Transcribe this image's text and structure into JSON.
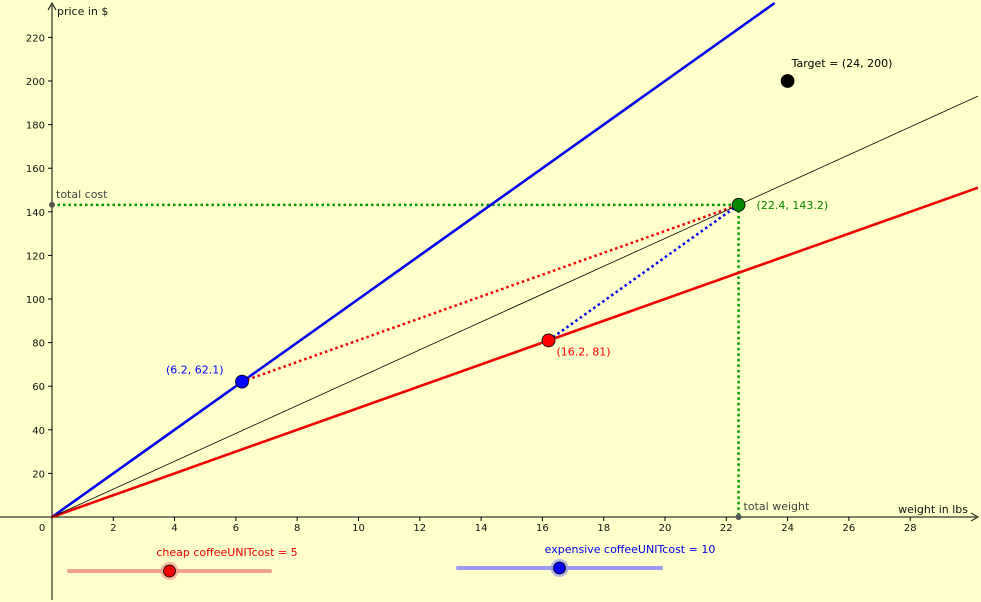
{
  "chart_data": {
    "type": "line",
    "xlabel": "weight in lbs",
    "ylabel": "price in $",
    "xlim": [
      0,
      30.5
    ],
    "ylim": [
      0,
      226
    ],
    "x_ticks": [
      "0",
      "2",
      "4",
      "6",
      "8",
      "10",
      "12",
      "14",
      "16",
      "18",
      "20",
      "22",
      "24",
      "26",
      "28"
    ],
    "y_ticks": [
      "20",
      "40",
      "60",
      "80",
      "100",
      "120",
      "140",
      "160",
      "180",
      "200",
      "220"
    ],
    "grid": false,
    "series": [
      {
        "color": "#0000ee",
        "slope": 10,
        "role": "expensive coffee price line"
      },
      {
        "color": "#ee0000",
        "slope": 5,
        "role": "cheap coffee price line"
      },
      {
        "color": "#000000",
        "slope": 6.39,
        "role": "average price line"
      }
    ],
    "points": [
      {
        "x": 6.2,
        "y": 62.1,
        "label": "(6.2, 62.1)",
        "color": "#0000ff"
      },
      {
        "x": 16.2,
        "y": 81,
        "label": "(16.2, 81)",
        "color": "#ff0000"
      },
      {
        "x": 22.4,
        "y": 143.2,
        "label": "(22.4, 143.2)",
        "color": "#008800"
      },
      {
        "x": 24,
        "y": 200,
        "label": "Target = (24, 200)",
        "color": "#000000"
      }
    ],
    "guides": {
      "total_cost_label": "total cost",
      "total_weight_label": "total weight",
      "color": "#009900"
    }
  },
  "sliders": [
    {
      "caption": "cheap coffeeUNITcost = 5",
      "min": 0,
      "max": 10,
      "value": 5,
      "color": "#ee0000",
      "track_color": "#f0a090"
    },
    {
      "caption": "expensive coffeeUNITcost = 10",
      "min": 0,
      "max": 20,
      "value": 10,
      "color": "#0000ee",
      "track_color": "#9999ee"
    }
  ]
}
